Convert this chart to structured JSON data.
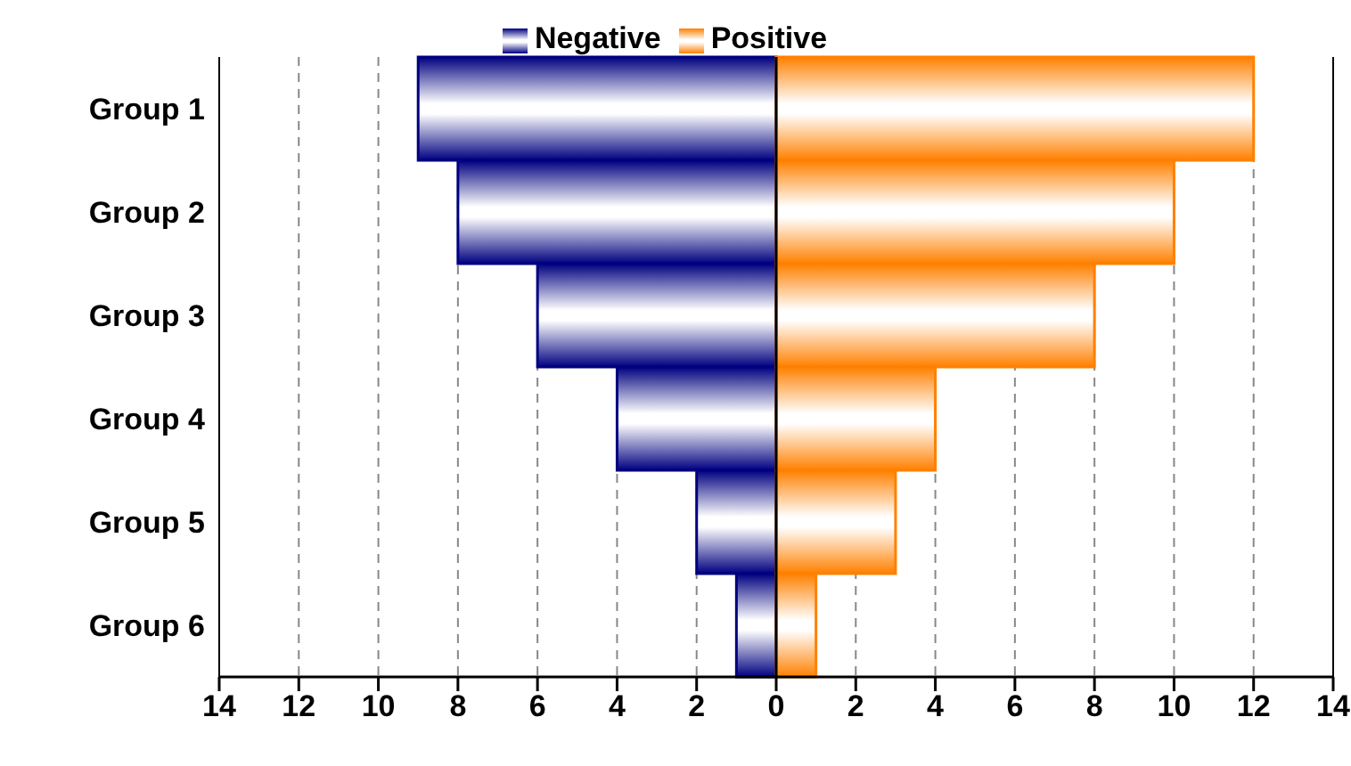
{
  "chart_data": {
    "type": "bar",
    "orientation": "horizontal",
    "stacked": true,
    "categories": [
      "Group 1",
      "Group 2",
      "Group 3",
      "Group 4",
      "Group 5",
      "Group 6"
    ],
    "series": [
      {
        "name": "Negative",
        "color": "#000080",
        "values": [
          -9,
          -8,
          -6,
          -4,
          -2,
          -1
        ]
      },
      {
        "name": "Positive",
        "color": "#ff8000",
        "values": [
          12,
          10,
          8,
          4,
          3,
          1
        ]
      }
    ],
    "xlim": [
      -14,
      14
    ],
    "xticks": [
      {
        "value": -14,
        "label": "14"
      },
      {
        "value": -12,
        "label": "12"
      },
      {
        "value": -10,
        "label": "10"
      },
      {
        "value": -8,
        "label": "8"
      },
      {
        "value": -6,
        "label": "6"
      },
      {
        "value": -4,
        "label": "4"
      },
      {
        "value": -2,
        "label": "2"
      },
      0,
      2,
      4,
      6,
      8,
      10,
      12,
      14
    ],
    "grid": "x",
    "legend": "top"
  }
}
